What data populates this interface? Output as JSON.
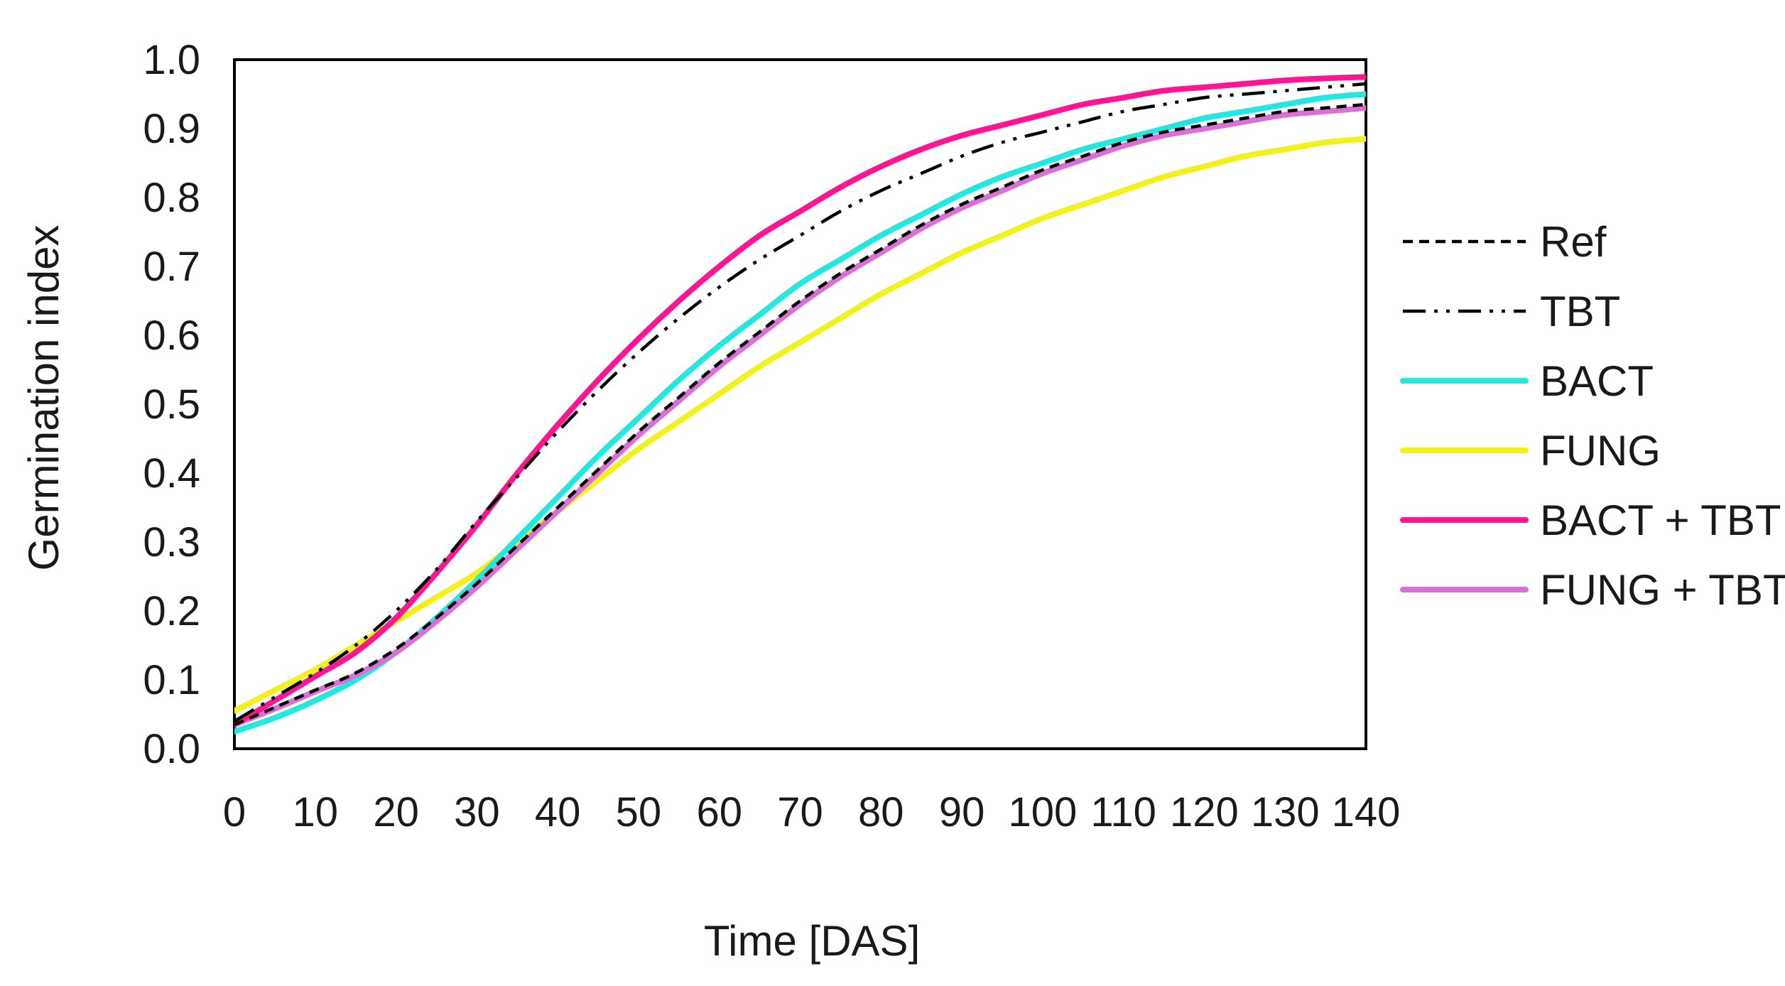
{
  "chart_data": {
    "type": "line",
    "title": "",
    "xlabel": "Time [DAS]",
    "ylabel": "Germination index",
    "xlim": [
      0,
      140
    ],
    "ylim": [
      0.0,
      1.0
    ],
    "x_ticks": [
      0,
      10,
      20,
      30,
      40,
      50,
      60,
      70,
      80,
      90,
      100,
      110,
      120,
      130,
      140
    ],
    "y_ticks": [
      0.0,
      0.1,
      0.2,
      0.3,
      0.4,
      0.5,
      0.6,
      0.7,
      0.8,
      0.9,
      1.0
    ],
    "x_tick_labels": [
      "0",
      "10",
      "20",
      "30",
      "40",
      "50",
      "60",
      "70",
      "80",
      "90",
      "100",
      "110",
      "120",
      "130",
      "140"
    ],
    "y_tick_labels": [
      "0.0",
      "0.1",
      "0.2",
      "0.3",
      "0.4",
      "0.5",
      "0.6",
      "0.7",
      "0.8",
      "0.9",
      "1.0"
    ],
    "grid": false,
    "legend_position": "right",
    "x": [
      0,
      5,
      10,
      15,
      20,
      25,
      30,
      35,
      40,
      45,
      50,
      55,
      60,
      65,
      70,
      75,
      80,
      85,
      90,
      95,
      100,
      105,
      110,
      115,
      120,
      125,
      130,
      135,
      140
    ],
    "series": [
      {
        "name": "Ref",
        "color": "#000000",
        "style": "dashed",
        "values": [
          0.035,
          0.06,
          0.085,
          0.11,
          0.145,
          0.19,
          0.24,
          0.295,
          0.35,
          0.405,
          0.46,
          0.51,
          0.56,
          0.605,
          0.65,
          0.69,
          0.725,
          0.76,
          0.79,
          0.815,
          0.84,
          0.86,
          0.88,
          0.895,
          0.905,
          0.915,
          0.925,
          0.93,
          0.935
        ]
      },
      {
        "name": "TBT",
        "color": "#000000",
        "style": "dashdotdot",
        "values": [
          0.04,
          0.075,
          0.11,
          0.15,
          0.2,
          0.26,
          0.33,
          0.395,
          0.46,
          0.52,
          0.575,
          0.625,
          0.67,
          0.71,
          0.745,
          0.78,
          0.81,
          0.835,
          0.86,
          0.88,
          0.895,
          0.91,
          0.925,
          0.935,
          0.945,
          0.95,
          0.955,
          0.96,
          0.965
        ]
      },
      {
        "name": "BACT",
        "color": "#22E8E0",
        "style": "solid",
        "values": [
          0.025,
          0.045,
          0.07,
          0.1,
          0.14,
          0.19,
          0.245,
          0.305,
          0.365,
          0.425,
          0.48,
          0.535,
          0.585,
          0.63,
          0.675,
          0.71,
          0.745,
          0.775,
          0.805,
          0.83,
          0.85,
          0.87,
          0.885,
          0.9,
          0.915,
          0.925,
          0.935,
          0.945,
          0.95
        ]
      },
      {
        "name": "FUNG",
        "color": "#F2F21A",
        "style": "solid",
        "values": [
          0.055,
          0.085,
          0.115,
          0.15,
          0.185,
          0.22,
          0.255,
          0.3,
          0.345,
          0.39,
          0.435,
          0.475,
          0.515,
          0.555,
          0.59,
          0.625,
          0.66,
          0.69,
          0.72,
          0.745,
          0.77,
          0.79,
          0.81,
          0.83,
          0.845,
          0.86,
          0.87,
          0.88,
          0.885
        ]
      },
      {
        "name": "BACT + TBT",
        "color": "#FF1493",
        "style": "solid",
        "values": [
          0.035,
          0.07,
          0.105,
          0.14,
          0.19,
          0.255,
          0.325,
          0.4,
          0.47,
          0.535,
          0.595,
          0.65,
          0.7,
          0.745,
          0.78,
          0.815,
          0.845,
          0.87,
          0.89,
          0.905,
          0.92,
          0.935,
          0.945,
          0.955,
          0.96,
          0.965,
          0.97,
          0.973,
          0.975
        ]
      },
      {
        "name": "FUNG + TBT",
        "color": "#DA70D6",
        "style": "solid",
        "values": [
          0.035,
          0.058,
          0.083,
          0.107,
          0.14,
          0.185,
          0.235,
          0.29,
          0.345,
          0.4,
          0.455,
          0.505,
          0.555,
          0.6,
          0.645,
          0.685,
          0.72,
          0.755,
          0.785,
          0.81,
          0.835,
          0.855,
          0.875,
          0.89,
          0.9,
          0.91,
          0.92,
          0.925,
          0.93
        ]
      }
    ]
  }
}
